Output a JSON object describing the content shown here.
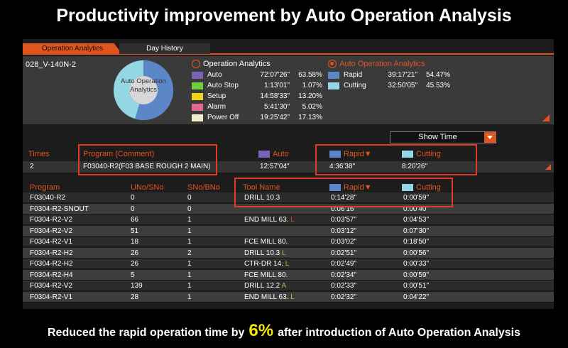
{
  "title": "Productivity improvement by Auto Operation Analysis",
  "tabs": [
    {
      "label": "Operation Analytics",
      "active": true
    },
    {
      "label": "Day History",
      "active": false
    }
  ],
  "machine": "028_V-140N-2",
  "donut": {
    "label_line1": "Auto Operation",
    "label_line2": "Analytics",
    "segments": [
      {
        "name": "Rapid",
        "percent": 54.47,
        "color": "#5b86c8"
      },
      {
        "name": "Cutting",
        "percent": 45.53,
        "color": "#92d7e3"
      }
    ]
  },
  "operation_analytics": {
    "heading": "Operation Analytics",
    "selected": false,
    "rows": [
      {
        "name": "Auto",
        "time": "72:07'26\"",
        "percent": "63.58%",
        "color": "#7b62b8"
      },
      {
        "name": "Auto Stop",
        "time": "1:13'01\"",
        "percent": "1.07%",
        "color": "#6fcf3c"
      },
      {
        "name": "Setup",
        "time": "14:58'33\"",
        "percent": "13.20%",
        "color": "#f2d21a"
      },
      {
        "name": "Alarm",
        "time": "5:41'30\"",
        "percent": "5.02%",
        "color": "#e06a8e"
      },
      {
        "name": "Power Off",
        "time": "19:25'42\"",
        "percent": "17.13%",
        "color": "#eeeecc"
      }
    ]
  },
  "auto_operation_analytics": {
    "heading": "Auto Operation Analytics",
    "selected": true,
    "rows": [
      {
        "name": "Rapid",
        "time": "39:17'21\"",
        "percent": "54.47%",
        "color": "#5b86c8"
      },
      {
        "name": "Cutting",
        "time": "32:50'05\"",
        "percent": "45.53%",
        "color": "#92d7e3"
      }
    ]
  },
  "show_time": {
    "label": "Show Time"
  },
  "summary": {
    "headers": {
      "times": "Times",
      "program": "Program (Comment)",
      "auto": "Auto",
      "rapid": "Rapid▼",
      "cutting": "Cutting"
    },
    "colors": {
      "auto": "#7b62b8",
      "rapid": "#5b86c8",
      "cutting": "#92d7e3"
    },
    "row": {
      "times": "2",
      "program": "F03040-R2(F03 BASE ROUGH 2 MAIN)",
      "auto": "12:57'04\"",
      "rapid": "4:36'38\"",
      "cutting": "8:20'26\""
    }
  },
  "detail": {
    "headers": {
      "program": "Program",
      "uno": "UNo/SNo",
      "sno": "SNo/BNo",
      "tool": "Tool Name",
      "rapid": "Rapid▼",
      "cutting": "Cutting"
    },
    "rows": [
      {
        "program": "F03040-R2",
        "uno": "0",
        "sno": "0",
        "tool": "DRILL 10.3",
        "tool_suffix": "",
        "suffix_class": "",
        "rapid": "0:14'28\"",
        "cutting": "0:00'59\""
      },
      {
        "program": "F0304-R2-SNOUT",
        "uno": "0",
        "sno": "0",
        "tool": "",
        "tool_suffix": "",
        "suffix_class": "",
        "rapid": "0:06'16\"",
        "cutting": "0:00'40\""
      },
      {
        "program": "F0304-R2-V2",
        "uno": "66",
        "sno": "1",
        "tool": "END MILL 63.",
        "tool_suffix": "L",
        "suffix_class": "hl-r",
        "rapid": "0:03'57\"",
        "cutting": "0:04'53\""
      },
      {
        "program": "F0304-R2-V2",
        "uno": "51",
        "sno": "1",
        "tool": "",
        "tool_suffix": "",
        "suffix_class": "",
        "rapid": "0:03'12\"",
        "cutting": "0:07'30\""
      },
      {
        "program": "F0304-R2-V1",
        "uno": "18",
        "sno": "1",
        "tool": "FCE MILL 80.",
        "tool_suffix": "",
        "suffix_class": "",
        "rapid": "0:03'02\"",
        "cutting": "0:18'50\""
      },
      {
        "program": "F0304-R2-H2",
        "uno": "26",
        "sno": "2",
        "tool": "DRILL 10.3",
        "tool_suffix": "L",
        "suffix_class": "hl-l",
        "rapid": "0:02'51\"",
        "cutting": "0:00'56\""
      },
      {
        "program": "F0304-R2-H2",
        "uno": "26",
        "sno": "1",
        "tool": "CTR-DR 14.",
        "tool_suffix": "L",
        "suffix_class": "hl-l",
        "rapid": "0:02'49\"",
        "cutting": "0:00'33\""
      },
      {
        "program": "F0304-R2-H4",
        "uno": "5",
        "sno": "1",
        "tool": "FCE MILL 80.",
        "tool_suffix": "",
        "suffix_class": "",
        "rapid": "0:02'34\"",
        "cutting": "0:00'59\""
      },
      {
        "program": "F0304-R2-V2",
        "uno": "139",
        "sno": "1",
        "tool": "DRILL 12.2",
        "tool_suffix": "A",
        "suffix_class": "hl-a",
        "rapid": "0:02'33\"",
        "cutting": "0:00'51\""
      },
      {
        "program": "F0304-R2-V1",
        "uno": "28",
        "sno": "1",
        "tool": "END MILL 63.",
        "tool_suffix": "L",
        "suffix_class": "hl-l",
        "rapid": "0:02'32\"",
        "cutting": "0:04'22\""
      }
    ]
  },
  "footer": {
    "before": "Reduced the rapid operation time by",
    "highlight": "6%",
    "after": "after introduction of Auto Operation Analysis"
  }
}
